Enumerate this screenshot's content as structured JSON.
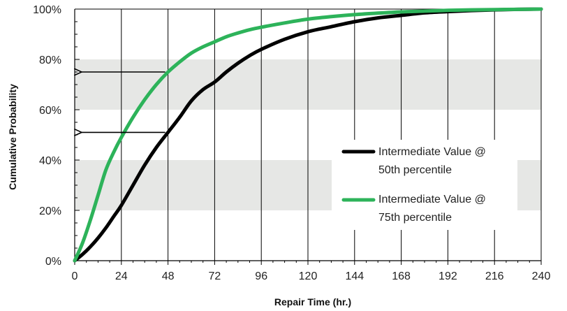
{
  "chart_data": {
    "type": "line",
    "title": "",
    "xlabel": "Repair Time (hr.)",
    "ylabel": "Cumulative Probability",
    "xlim": [
      0,
      240
    ],
    "ylim": [
      0,
      100
    ],
    "x_ticks": [
      0,
      24,
      48,
      72,
      96,
      120,
      144,
      168,
      192,
      216,
      240
    ],
    "y_ticks": [
      0,
      20,
      40,
      60,
      80,
      100
    ],
    "x_tick_labels": [
      "0",
      "24",
      "48",
      "72",
      "96",
      "120",
      "144",
      "168",
      "192",
      "216",
      "240"
    ],
    "y_tick_labels": [
      "0%",
      "20%",
      "40%",
      "60%",
      "80%",
      "100%"
    ],
    "grid": "vertical lines at each x tick; shaded horizontal bands 20%-40% and 60%-80%",
    "legend_position": "right",
    "series": [
      {
        "name": "Intermediate Value @ 50th percentile",
        "legend_line1": "Intermediate Value @",
        "legend_line2": "50th percentile",
        "color": "#000000",
        "x": [
          0,
          4,
          8,
          12,
          16,
          20,
          24,
          30,
          36,
          42,
          48,
          54,
          60,
          66,
          72,
          78,
          84,
          90,
          96,
          108,
          120,
          132,
          144,
          156,
          168,
          180,
          192,
          204,
          216,
          228,
          240
        ],
        "y": [
          0,
          2.5,
          5.5,
          9,
          13,
          17.5,
          22,
          30,
          38,
          45,
          51,
          57,
          63.5,
          68,
          71,
          75,
          78.5,
          81.5,
          84,
          88,
          91,
          93,
          95,
          96.5,
          97.5,
          98.5,
          99,
          99.4,
          99.7,
          99.9,
          100
        ]
      },
      {
        "name": "Intermediate Value @ 75th percentile",
        "legend_line1": "Intermediate Value @",
        "legend_line2": "75th percentile",
        "color": "#2db35a",
        "x": [
          0,
          4,
          8,
          12,
          16,
          20,
          24,
          30,
          36,
          42,
          48,
          54,
          60,
          66,
          72,
          78,
          84,
          90,
          96,
          108,
          120,
          132,
          144,
          156,
          168,
          180,
          192,
          204,
          216,
          228,
          240
        ],
        "y": [
          0,
          7,
          16,
          26,
          36,
          43,
          49,
          57,
          64,
          70,
          75,
          79,
          82.5,
          85,
          87,
          89,
          90.5,
          91.8,
          92.8,
          94.5,
          96,
          97,
          97.8,
          98.4,
          98.9,
          99.2,
          99.5,
          99.7,
          99.8,
          99.9,
          100
        ]
      }
    ],
    "annotations": [
      {
        "type": "arrow",
        "from": [
          48,
          75
        ],
        "to": [
          0,
          75
        ],
        "color": "#000000"
      },
      {
        "type": "arrow",
        "from": [
          48,
          51
        ],
        "to": [
          0,
          51
        ],
        "color": "#000000"
      }
    ]
  }
}
